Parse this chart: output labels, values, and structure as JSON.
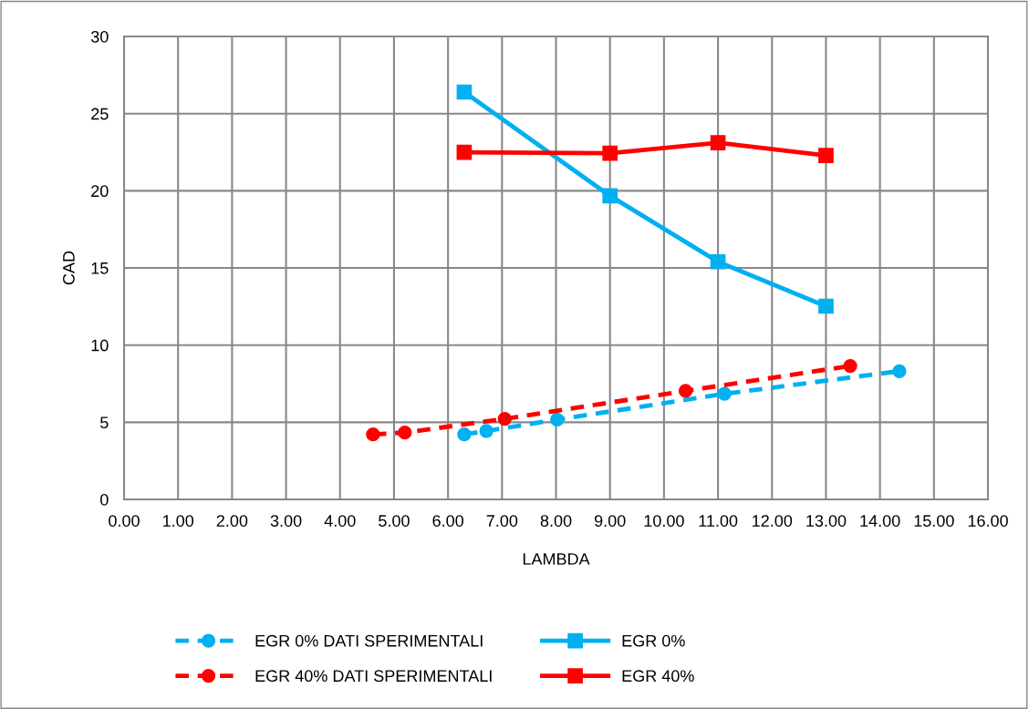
{
  "chart_data": {
    "type": "line",
    "xlabel": "LAMBDA",
    "ylabel": "CAD",
    "xlim": [
      0,
      16
    ],
    "xticks": [
      {
        "value": 0,
        "label": "0.00"
      },
      {
        "value": 1,
        "label": "1.00"
      },
      {
        "value": 2,
        "label": "2.00"
      },
      {
        "value": 3,
        "label": "3.00"
      },
      {
        "value": 4,
        "label": "4.00"
      },
      {
        "value": 5,
        "label": "5.00"
      },
      {
        "value": 6,
        "label": "6.00"
      },
      {
        "value": 7,
        "label": "7.00"
      },
      {
        "value": 8,
        "label": "8.00"
      },
      {
        "value": 9,
        "label": "9.00"
      },
      {
        "value": 10,
        "label": "10.00"
      },
      {
        "value": 11,
        "label": "11.00"
      },
      {
        "value": 12,
        "label": "12.00"
      },
      {
        "value": 13,
        "label": "13.00"
      },
      {
        "value": 14,
        "label": "14.00"
      },
      {
        "value": 15,
        "label": "15.00"
      },
      {
        "value": 16,
        "label": "16.00"
      }
    ],
    "ylim": [
      0,
      30
    ],
    "yticks": [
      0,
      5,
      10,
      15,
      20,
      25,
      30
    ],
    "grid": true,
    "legend": "bottom",
    "series": [
      {
        "name": "EGR 0% DATI SPERIMENTALI",
        "color": "#00b0f0",
        "marker": "circle",
        "line_style": "dashed",
        "x": [
          6.3,
          6.71,
          8.02,
          11.12,
          14.36
        ],
        "values": [
          4.21,
          4.43,
          5.17,
          6.84,
          8.31
        ]
      },
      {
        "name": "EGR 40% DATI SPERIMENTALI",
        "color": "#ff0000",
        "marker": "circle",
        "line_style": "dashed",
        "x": [
          4.61,
          5.2,
          7.05,
          10.4,
          13.45
        ],
        "values": [
          4.21,
          4.33,
          5.22,
          7.03,
          8.65
        ]
      },
      {
        "name": "EGR 0%",
        "color": "#00b0f0",
        "marker": "square",
        "line_style": "solid",
        "x": [
          6.3,
          9.0,
          11.0,
          13.0
        ],
        "values": [
          26.4,
          19.67,
          15.4,
          12.52
        ]
      },
      {
        "name": "EGR 40%",
        "color": "#ff0000",
        "marker": "square",
        "line_style": "solid",
        "x": [
          6.3,
          9.0,
          11.0,
          13.0
        ],
        "values": [
          22.49,
          22.43,
          23.11,
          22.29
        ]
      }
    ]
  }
}
